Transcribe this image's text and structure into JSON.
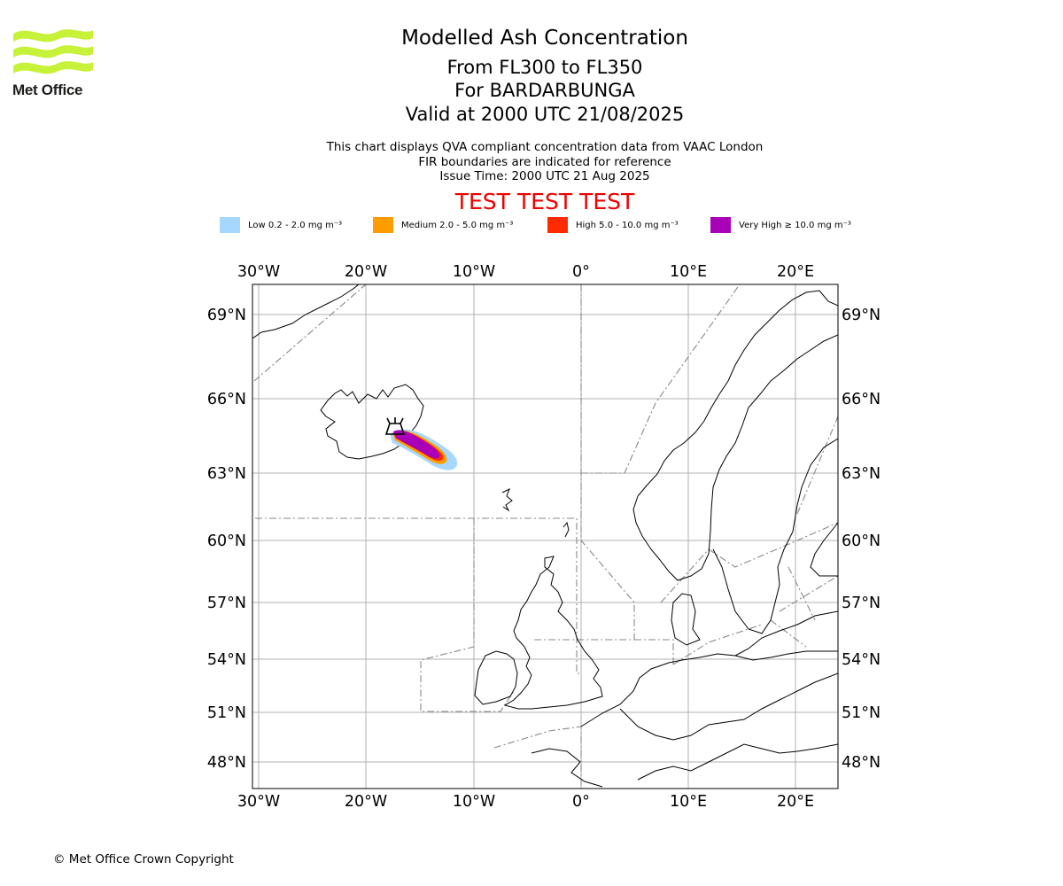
{
  "logo": {
    "text": "Met Office",
    "color": "#c8f23a"
  },
  "titles": {
    "main": "Modelled Ash Concentration",
    "levels": "From FL300 to FL350",
    "volcano": "For BARDARBUNGA",
    "valid": "Valid at 2000 UTC 21/08/2025"
  },
  "info": {
    "line1": "This chart displays QVA compliant concentration data from VAAC London",
    "line2": "FIR boundaries are indicated for reference",
    "line3": "Issue Time: 2000 UTC 21 Aug 2025"
  },
  "test_banner": "TEST TEST TEST",
  "legend": [
    {
      "label": "Low 0.2 - 2.0 mg m⁻³",
      "color": "#a6d8ff"
    },
    {
      "label": "Medium 2.0 - 5.0 mg m⁻³",
      "color": "#ff9d00"
    },
    {
      "label": "High 5.0 - 10.0 mg m⁻³",
      "color": "#ff2a00"
    },
    {
      "label": "Very High  ≥  10.0 mg m⁻³",
      "color": "#a900b8"
    }
  ],
  "map": {
    "lon_ticks": [
      "30°W",
      "20°W",
      "10°W",
      "0°",
      "10°E",
      "20°E"
    ],
    "lat_ticks": [
      "69°N",
      "66°N",
      "63°N",
      "60°N",
      "57°N",
      "54°N",
      "51°N",
      "48°N"
    ],
    "volcano": {
      "name": "BARDARBUNGA",
      "lat": 64.64,
      "lon": -17.53
    },
    "extent": {
      "lon": [
        -31,
        23.5
      ],
      "lat": [
        46.5,
        70
      ]
    }
  },
  "copyright": "© Met Office Crown Copyright"
}
